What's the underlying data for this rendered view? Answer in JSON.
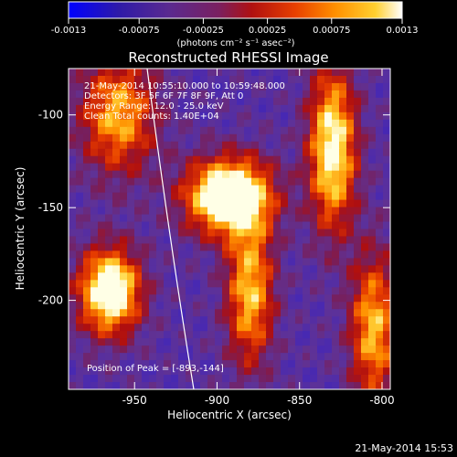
{
  "colorbar": {
    "tick_labels": [
      "-0.0013",
      "-0.00075",
      "-0.00025",
      "0.00025",
      "0.00075",
      "0.0013"
    ],
    "units": "(photons cm⁻² s⁻¹ asec⁻²)",
    "range": [
      -0.0013,
      0.0013
    ],
    "colors": [
      "#0000ff",
      "#3a1aa8",
      "#5a2a90",
      "#7a2060",
      "#b01010",
      "#e84000",
      "#ff9000",
      "#ffd030",
      "#ffffff"
    ]
  },
  "title": "Reconstructed RHESSI Image",
  "info": {
    "line1": "21-May-2014 10:55:10.000 to 10:59:48.000",
    "line2": "Detectors: 3F 5F 6F 7F 8F 9F, Att 0",
    "line3": "Energy Range: 12.0 - 25.0 keV",
    "line4": "Clean     Total counts: 1.40E+04"
  },
  "peak_label": "Position of Peak = [-893,-144]",
  "chart_data": {
    "type": "heatmap",
    "title": "Reconstructed RHESSI Image",
    "xlabel": "Heliocentric X (arcsec)",
    "ylabel": "Heliocentric Y (arcsec)",
    "xlim": [
      -990,
      -795
    ],
    "ylim": [
      -248,
      -75
    ],
    "x_ticks": [
      -950,
      -900,
      -850,
      -800
    ],
    "x_tick_labels": [
      "-950",
      "-900",
      "-850",
      "-800"
    ],
    "y_ticks": [
      -100,
      -150,
      -200
    ],
    "y_tick_labels": [
      "-100",
      "-150",
      "-200"
    ],
    "peak": [
      -893,
      -144
    ],
    "sources": [
      {
        "x": -893,
        "y": -144,
        "sx": 18,
        "sy": 14,
        "amp": 1.0
      },
      {
        "x": -880,
        "y": -195,
        "sx": 10,
        "sy": 28,
        "amp": 0.62
      },
      {
        "x": -965,
        "y": -195,
        "sx": 13,
        "sy": 16,
        "amp": 0.9
      },
      {
        "x": -960,
        "y": -100,
        "sx": 16,
        "sy": 22,
        "amp": 0.58
      },
      {
        "x": -830,
        "y": -118,
        "sx": 10,
        "sy": 30,
        "amp": 0.78
      },
      {
        "x": -805,
        "y": -215,
        "sx": 10,
        "sy": 28,
        "amp": 0.6
      }
    ]
  },
  "footer_timestamp": "21-May-2014 15:53"
}
